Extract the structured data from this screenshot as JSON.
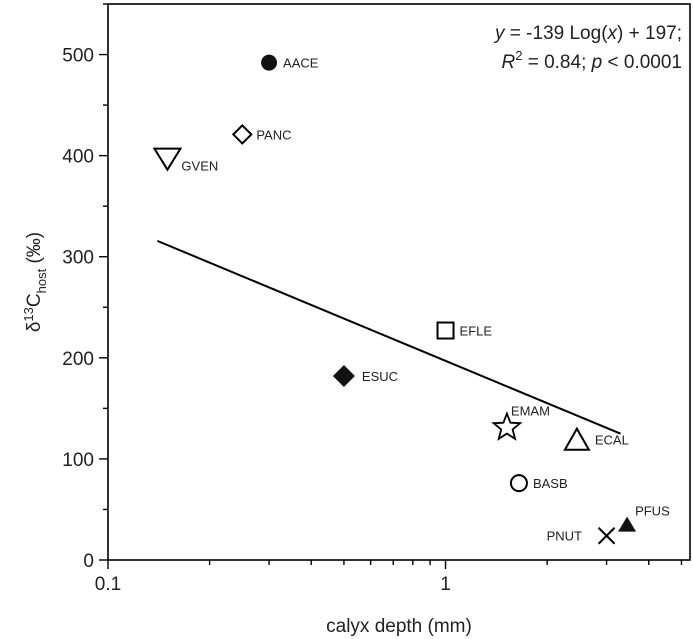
{
  "chart_data": {
    "type": "scatter",
    "x_scale": "log",
    "xlim": [
      0.1,
      5.3
    ],
    "ylim": [
      0,
      550
    ],
    "xlabel": "calyx depth (mm)",
    "ylabel_prefix": "δ",
    "ylabel_sup": "13",
    "ylabel_main": "C",
    "ylabel_sub": "host",
    "ylabel_unit": " (‰)",
    "x_ticks": [
      {
        "value": 0.1,
        "label": "0.1"
      },
      {
        "value": 1,
        "label": "1"
      }
    ],
    "y_ticks": [
      {
        "value": 0,
        "label": "0"
      },
      {
        "value": 100,
        "label": "100"
      },
      {
        "value": 200,
        "label": "200"
      },
      {
        "value": 300,
        "label": "300"
      },
      {
        "value": 400,
        "label": "400"
      },
      {
        "value": 500,
        "label": "500"
      }
    ],
    "points": [
      {
        "label": "AACE",
        "x": 0.3,
        "y": 492,
        "marker": "circle-filled"
      },
      {
        "label": "PANC",
        "x": 0.25,
        "y": 421,
        "marker": "diamond-open"
      },
      {
        "label": "GVEN",
        "x": 0.15,
        "y": 397,
        "marker": "triangle-down-open"
      },
      {
        "label": "EFLE",
        "x": 1.0,
        "y": 227,
        "marker": "square-open"
      },
      {
        "label": "ESUC",
        "x": 0.5,
        "y": 182,
        "marker": "diamond-filled"
      },
      {
        "label": "EMAM",
        "x": 1.52,
        "y": 131,
        "marker": "star-open"
      },
      {
        "label": "ECAL",
        "x": 2.45,
        "y": 119,
        "marker": "triangle-up-open"
      },
      {
        "label": "BASB",
        "x": 1.65,
        "y": 76,
        "marker": "circle-open"
      },
      {
        "label": "PFUS",
        "x": 3.45,
        "y": 35,
        "marker": "triangle-up-filled"
      },
      {
        "label": "PNUT",
        "x": 3.0,
        "y": 24,
        "marker": "x"
      }
    ],
    "fit": {
      "intercept": 197,
      "slope": -139,
      "x_range": [
        0.14,
        3.3
      ],
      "eq_line1_prefix": "y",
      "eq_line1_mid": " = -139 Log(",
      "eq_line1_x": "x",
      "eq_line1_suffix": ") + 197;",
      "eq_line2_r": "R",
      "eq_line2_sup": "2",
      "eq_line2_mid": " = 0.84; ",
      "eq_line2_p": "p",
      "eq_line2_end": " < 0.0001"
    }
  }
}
